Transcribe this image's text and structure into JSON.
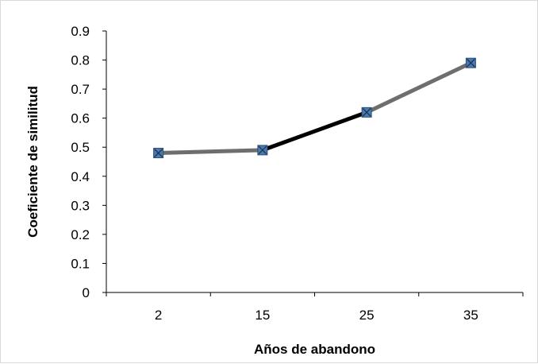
{
  "chart_data": {
    "type": "line",
    "title": "",
    "xlabel": "Años de abandono",
    "ylabel": "Coeficiente de similitud",
    "categories": [
      "2",
      "15",
      "25",
      "35"
    ],
    "series": [
      {
        "values": [
          0.48,
          0.49,
          0.62,
          0.79
        ]
      }
    ],
    "ylim": [
      0,
      0.9
    ],
    "yticks": [
      "0",
      "0.1",
      "0.2",
      "0.3",
      "0.4",
      "0.5",
      "0.6",
      "0.7",
      "0.8",
      "0.9"
    ],
    "grid": false,
    "legend": "none",
    "colors": {
      "line": "#6e6e6e",
      "highlight_segment": "#000000",
      "marker_fill": "#4a7ab0",
      "marker_edge": "#2c4f78",
      "axis": "#000000"
    }
  }
}
